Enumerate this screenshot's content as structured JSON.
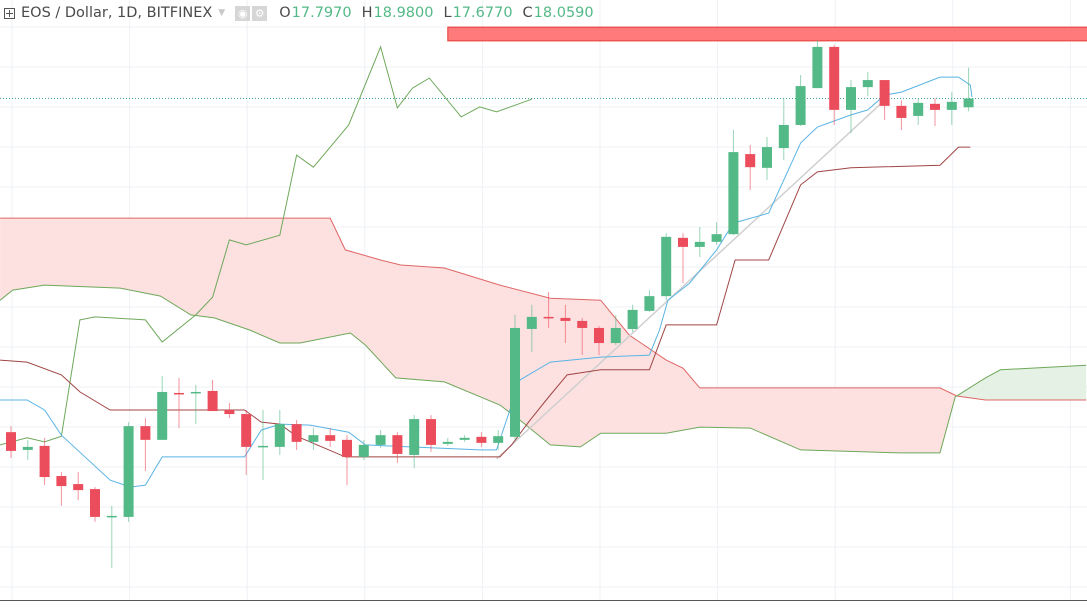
{
  "header": {
    "symbol_title": "EOS / Dollar, 1D, BITFINEX",
    "ohlc": [
      {
        "key": "O",
        "value": "17.7970"
      },
      {
        "key": "H",
        "value": "18.9800"
      },
      {
        "key": "L",
        "value": "17.6770"
      },
      {
        "key": "C",
        "value": "18.0590"
      }
    ],
    "icons": [
      "plus-square-icon",
      "chevron-down-icon",
      "eye-icon",
      "gear-icon"
    ]
  },
  "colors": {
    "up": "#53b987",
    "down": "#eb4d5c",
    "tenkan": "#5ab4e5",
    "kijun": "#a04545",
    "chikou": "#6ea85a",
    "span_a": "#6ea85a",
    "span_b": "#e06666",
    "cloud_bear": "#fde0e0",
    "cloud_bull": "#e4f1e4",
    "last_price": "#3fa39b",
    "zone": "#ff7b7b",
    "trendline": "#cfcfcf"
  },
  "chart_data": {
    "type": "candlestick",
    "indicator": "ichimoku",
    "grid": true,
    "last_price": 18.059,
    "candles": [
      [
        8.1,
        8.28,
        7.33,
        7.54
      ],
      [
        7.57,
        7.87,
        7.27,
        7.66
      ],
      [
        7.69,
        7.93,
        6.52,
        6.76
      ],
      [
        6.79,
        6.91,
        5.9,
        6.49
      ],
      [
        6.55,
        6.91,
        6.07,
        6.37
      ],
      [
        6.4,
        6.46,
        5.42,
        5.57
      ],
      [
        5.57,
        5.9,
        4.04,
        5.6
      ],
      [
        5.57,
        8.4,
        5.42,
        8.28
      ],
      [
        8.28,
        8.52,
        6.94,
        7.87
      ],
      [
        7.87,
        9.78,
        7.87,
        9.3
      ],
      [
        9.27,
        9.72,
        8.22,
        9.24
      ],
      [
        9.27,
        9.51,
        8.34,
        9.3
      ],
      [
        9.33,
        9.66,
        8.73,
        8.73
      ],
      [
        8.76,
        8.97,
        8.52,
        8.64
      ],
      [
        8.64,
        8.76,
        6.82,
        7.66
      ],
      [
        7.66,
        8.76,
        6.67,
        7.69
      ],
      [
        7.66,
        8.76,
        7.42,
        8.34
      ],
      [
        8.34,
        8.46,
        7.57,
        7.81
      ],
      [
        7.81,
        8.22,
        7.57,
        8.01
      ],
      [
        8.01,
        8.22,
        7.66,
        7.84
      ],
      [
        7.87,
        8.01,
        6.52,
        7.36
      ],
      [
        7.36,
        7.87,
        7.27,
        7.72
      ],
      [
        7.72,
        8.16,
        7.63,
        8.01
      ],
      [
        8.01,
        8.1,
        7.18,
        7.45
      ],
      [
        7.42,
        8.61,
        7.03,
        8.49
      ],
      [
        8.49,
        8.61,
        7.51,
        7.72
      ],
      [
        7.75,
        7.93,
        7.69,
        7.81
      ],
      [
        7.87,
        8.01,
        7.81,
        7.93
      ],
      [
        7.96,
        8.1,
        7.66,
        7.78
      ],
      [
        7.78,
        8.16,
        7.57,
        7.98
      ],
      [
        7.96,
        11.6,
        7.87,
        11.21
      ],
      [
        11.18,
        11.9,
        10.49,
        11.54
      ],
      [
        11.54,
        12.28,
        11.21,
        11.51
      ],
      [
        11.51,
        11.9,
        10.76,
        11.42
      ],
      [
        11.42,
        11.51,
        10.4,
        11.21
      ],
      [
        11.21,
        11.27,
        10.4,
        10.76
      ],
      [
        10.76,
        11.6,
        10.7,
        11.21
      ],
      [
        11.18,
        11.9,
        11.09,
        11.75
      ],
      [
        11.72,
        12.34,
        11.69,
        12.16
      ],
      [
        12.16,
        14.04,
        12.04,
        13.93
      ],
      [
        13.9,
        14.04,
        12.55,
        13.63
      ],
      [
        13.63,
        14.22,
        13.33,
        13.78
      ],
      [
        13.78,
        14.37,
        13.69,
        14.01
      ],
      [
        14.01,
        17.12,
        13.98,
        16.46
      ],
      [
        16.4,
        16.67,
        15.33,
        16.01
      ],
      [
        15.99,
        16.91,
        15.63,
        16.61
      ],
      [
        16.58,
        18.07,
        16.22,
        17.27
      ],
      [
        17.27,
        18.76,
        17.24,
        18.43
      ],
      [
        18.37,
        19.81,
        18.37,
        19.6
      ],
      [
        19.6,
        19.66,
        17.27,
        17.72
      ],
      [
        17.72,
        18.61,
        17.03,
        18.4
      ],
      [
        18.4,
        18.85,
        18.13,
        18.61
      ],
      [
        18.61,
        18.61,
        17.42,
        17.84
      ],
      [
        17.84,
        18.01,
        17.12,
        17.48
      ],
      [
        17.54,
        18.07,
        17.27,
        17.93
      ],
      [
        17.9,
        18.07,
        17.24,
        17.72
      ],
      [
        17.72,
        18.25,
        17.27,
        17.96
      ],
      [
        17.797,
        18.98,
        17.677,
        18.059
      ]
    ],
    "tenkan": [
      [
        0.35,
        9.06
      ],
      [
        1.95,
        9.06
      ],
      [
        3,
        8.76
      ],
      [
        4,
        8.01
      ],
      [
        6.9,
        6.67
      ],
      [
        8.1,
        6.46
      ],
      [
        9,
        6.52
      ],
      [
        10,
        7.36
      ],
      [
        14.9,
        7.36
      ],
      [
        15.9,
        8.16
      ],
      [
        17,
        8.34
      ],
      [
        18.8,
        8.31
      ],
      [
        21.1,
        8.1
      ],
      [
        22.1,
        7.72
      ],
      [
        28.9,
        7.57
      ],
      [
        29.9,
        7.57
      ],
      [
        30.8,
        8.91
      ],
      [
        31.3,
        9.66
      ],
      [
        33.1,
        10.19
      ],
      [
        36.1,
        10.34
      ],
      [
        39,
        10.4
      ],
      [
        39.6,
        11.15
      ],
      [
        40.1,
        12.04
      ],
      [
        41.4,
        12.55
      ],
      [
        43,
        13.54
      ],
      [
        44,
        14.34
      ],
      [
        46.1,
        14.64
      ],
      [
        48,
        16.73
      ],
      [
        49,
        17.21
      ],
      [
        51,
        17.57
      ],
      [
        52,
        17.72
      ],
      [
        53,
        18.16
      ],
      [
        54,
        18.25
      ],
      [
        56.3,
        18.7
      ],
      [
        57.4,
        18.7
      ],
      [
        58.1,
        18.46
      ],
      [
        58.2,
        18.1
      ]
    ],
    "kijun": [
      [
        0.35,
        10.25
      ],
      [
        1.95,
        10.19
      ],
      [
        4,
        9.81
      ],
      [
        5.1,
        9.3
      ],
      [
        6.9,
        8.76
      ],
      [
        14.9,
        8.76
      ],
      [
        15.9,
        8.4
      ],
      [
        17,
        8.34
      ],
      [
        18,
        7.98
      ],
      [
        20.9,
        7.36
      ],
      [
        30.1,
        7.36
      ],
      [
        30.8,
        7.72
      ],
      [
        31.9,
        8.46
      ],
      [
        33.1,
        9.21
      ],
      [
        34.1,
        9.81
      ],
      [
        36.1,
        9.96
      ],
      [
        39,
        9.96
      ],
      [
        40,
        11.3
      ],
      [
        43,
        11.3
      ],
      [
        44.1,
        13.24
      ],
      [
        46.1,
        13.24
      ],
      [
        48,
        15.48
      ],
      [
        49,
        15.87
      ],
      [
        51,
        15.99
      ],
      [
        56.3,
        16.07
      ],
      [
        57.4,
        16.61
      ],
      [
        58.1,
        16.61
      ]
    ],
    "chikou": [
      [
        0.35,
        7.72
      ],
      [
        1.95,
        7.93
      ],
      [
        3,
        7.81
      ],
      [
        4,
        7.98
      ],
      [
        5.1,
        11.45
      ],
      [
        6,
        11.54
      ],
      [
        9,
        11.45
      ],
      [
        10,
        10.79
      ],
      [
        12,
        11.6
      ],
      [
        13,
        12.13
      ],
      [
        14,
        13.84
      ],
      [
        15,
        13.69
      ],
      [
        17,
        13.98
      ],
      [
        18,
        16.37
      ],
      [
        19,
        16.01
      ],
      [
        21.1,
        17.27
      ],
      [
        23,
        19.6
      ],
      [
        24,
        17.78
      ],
      [
        24.9,
        18.37
      ],
      [
        25.9,
        18.67
      ],
      [
        27.8,
        17.51
      ],
      [
        28.9,
        17.81
      ],
      [
        29.9,
        17.66
      ],
      [
        32,
        18.04
      ]
    ],
    "span_b": [
      [
        0.35,
        14.49
      ],
      [
        20,
        14.49
      ],
      [
        20.9,
        13.54
      ],
      [
        23,
        13.24
      ],
      [
        24.2,
        13.09
      ],
      [
        26.8,
        13.0
      ],
      [
        30.1,
        12.49
      ],
      [
        33.1,
        12.1
      ],
      [
        36.1,
        12.04
      ],
      [
        37.8,
        11.0
      ],
      [
        40,
        10.25
      ],
      [
        41,
        10.01
      ],
      [
        42,
        9.42
      ],
      [
        56.3,
        9.42
      ],
      [
        57.3,
        9.18
      ],
      [
        59,
        9.06
      ],
      [
        65,
        9.06
      ]
    ],
    "span_a": [
      [
        0.35,
        12.04
      ],
      [
        1.1,
        12.34
      ],
      [
        3,
        12.49
      ],
      [
        7.5,
        12.4
      ],
      [
        9.9,
        12.16
      ],
      [
        11.7,
        11.6
      ],
      [
        13.1,
        11.51
      ],
      [
        15.2,
        11.15
      ],
      [
        17,
        10.76
      ],
      [
        18.2,
        10.76
      ],
      [
        21.2,
        11.06
      ],
      [
        22.1,
        10.7
      ],
      [
        23.9,
        9.72
      ],
      [
        26.8,
        9.6
      ],
      [
        30.1,
        8.91
      ],
      [
        31.3,
        8.46
      ],
      [
        33.1,
        7.72
      ],
      [
        34.9,
        7.66
      ],
      [
        36.1,
        8.07
      ],
      [
        40,
        8.07
      ],
      [
        42,
        8.25
      ],
      [
        45,
        8.22
      ],
      [
        48,
        7.57
      ],
      [
        53.9,
        7.48
      ],
      [
        56.3,
        7.48
      ],
      [
        57.2,
        9.15
      ],
      [
        59,
        9.72
      ],
      [
        59.9,
        9.96
      ],
      [
        65,
        10.1
      ]
    ],
    "cloud_cross_index": 57.2,
    "trendline": [
      [
        29.9,
        7.3
      ],
      [
        53,
        18.01
      ]
    ],
    "price_zone": {
      "from_index": 27,
      "to_index": 65,
      "low": 19.78,
      "high": 20.19
    }
  }
}
